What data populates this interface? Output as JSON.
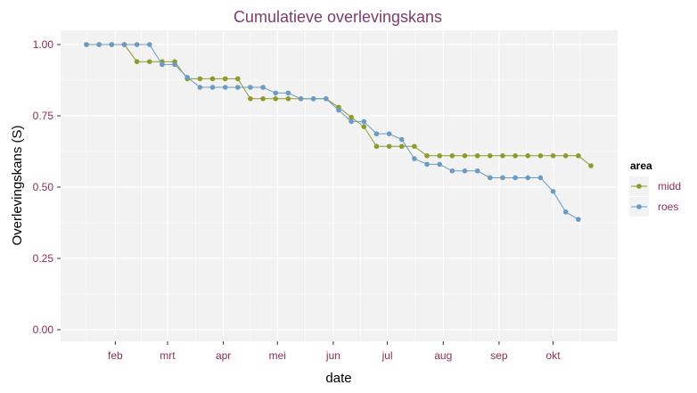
{
  "chart_data": {
    "type": "line",
    "title": "Cumulatieve overlevingskans",
    "xlabel": "date",
    "ylabel": "Overlevingskans (S)",
    "ylim": [
      0,
      1
    ],
    "yticks": [
      "0.00",
      "0.25",
      "0.50",
      "0.75",
      "1.00"
    ],
    "xticks": [
      "feb",
      "mrt",
      "apr",
      "mei",
      "jun",
      "jul",
      "aug",
      "sep",
      "okt"
    ],
    "grid": true,
    "legend": {
      "title": "area",
      "placement": "right"
    },
    "series": [
      {
        "name": "midd",
        "color": "#8f9a2d",
        "points": [
          [
            "2000-01-16",
            1.0
          ],
          [
            "2000-01-23",
            1.0
          ],
          [
            "2000-01-30",
            1.0
          ],
          [
            "2000-02-06",
            1.0
          ],
          [
            "2000-02-13",
            0.94
          ],
          [
            "2000-02-20",
            0.94
          ],
          [
            "2000-02-27",
            0.94
          ],
          [
            "2000-03-05",
            0.94
          ],
          [
            "2000-03-12",
            0.88
          ],
          [
            "2000-03-19",
            0.88
          ],
          [
            "2000-03-26",
            0.88
          ],
          [
            "2000-04-02",
            0.88
          ],
          [
            "2000-04-09",
            0.88
          ],
          [
            "2000-04-16",
            0.81
          ],
          [
            "2000-04-23",
            0.81
          ],
          [
            "2000-04-30",
            0.81
          ],
          [
            "2000-05-07",
            0.81
          ],
          [
            "2000-05-14",
            0.81
          ],
          [
            "2000-05-21",
            0.81
          ],
          [
            "2000-05-28",
            0.81
          ],
          [
            "2000-06-04",
            0.78
          ],
          [
            "2000-06-11",
            0.745
          ],
          [
            "2000-06-18",
            0.712
          ],
          [
            "2000-06-25",
            0.643
          ],
          [
            "2000-07-02",
            0.643
          ],
          [
            "2000-07-09",
            0.643
          ],
          [
            "2000-07-16",
            0.643
          ],
          [
            "2000-07-23",
            0.61
          ],
          [
            "2000-07-30",
            0.61
          ],
          [
            "2000-08-06",
            0.61
          ],
          [
            "2000-08-13",
            0.61
          ],
          [
            "2000-08-20",
            0.61
          ],
          [
            "2000-08-27",
            0.61
          ],
          [
            "2000-09-03",
            0.61
          ],
          [
            "2000-09-10",
            0.61
          ],
          [
            "2000-09-17",
            0.61
          ],
          [
            "2000-09-24",
            0.61
          ],
          [
            "2000-10-01",
            0.61
          ],
          [
            "2000-10-08",
            0.61
          ],
          [
            "2000-10-15",
            0.61
          ],
          [
            "2000-10-22",
            0.575
          ]
        ]
      },
      {
        "name": "roes",
        "color": "#6a9bc3",
        "points": [
          [
            "2000-01-16",
            1.0
          ],
          [
            "2000-01-23",
            1.0
          ],
          [
            "2000-01-30",
            1.0
          ],
          [
            "2000-02-06",
            1.0
          ],
          [
            "2000-02-13",
            1.0
          ],
          [
            "2000-02-20",
            1.0
          ],
          [
            "2000-02-27",
            0.93
          ],
          [
            "2000-03-05",
            0.93
          ],
          [
            "2000-03-12",
            0.885
          ],
          [
            "2000-03-19",
            0.85
          ],
          [
            "2000-03-26",
            0.85
          ],
          [
            "2000-04-02",
            0.85
          ],
          [
            "2000-04-09",
            0.85
          ],
          [
            "2000-04-16",
            0.85
          ],
          [
            "2000-04-23",
            0.85
          ],
          [
            "2000-04-30",
            0.83
          ],
          [
            "2000-05-07",
            0.83
          ],
          [
            "2000-05-14",
            0.81
          ],
          [
            "2000-05-21",
            0.81
          ],
          [
            "2000-05-28",
            0.81
          ],
          [
            "2000-06-04",
            0.77
          ],
          [
            "2000-06-11",
            0.73
          ],
          [
            "2000-06-18",
            0.73
          ],
          [
            "2000-06-25",
            0.687
          ],
          [
            "2000-07-02",
            0.687
          ],
          [
            "2000-07-09",
            0.667
          ],
          [
            "2000-07-16",
            0.6
          ],
          [
            "2000-07-23",
            0.58
          ],
          [
            "2000-07-30",
            0.58
          ],
          [
            "2000-08-06",
            0.557
          ],
          [
            "2000-08-13",
            0.557
          ],
          [
            "2000-08-20",
            0.557
          ],
          [
            "2000-08-27",
            0.533
          ],
          [
            "2000-09-03",
            0.533
          ],
          [
            "2000-09-10",
            0.533
          ],
          [
            "2000-09-17",
            0.533
          ],
          [
            "2000-09-24",
            0.533
          ],
          [
            "2000-10-01",
            0.485
          ],
          [
            "2000-10-08",
            0.413
          ],
          [
            "2000-10-15",
            0.387
          ]
        ]
      }
    ]
  },
  "colors": {
    "title": "#7d3c6b",
    "tick_label": "#8b2d5a",
    "panel": "#f2f2f2",
    "grid": "#ffffff"
  }
}
